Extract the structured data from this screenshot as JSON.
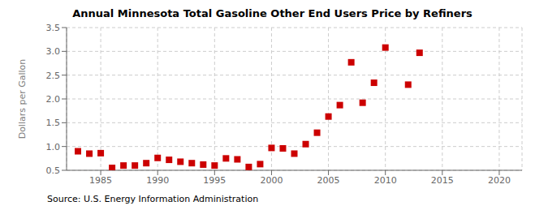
{
  "chart_data": {
    "type": "scatter",
    "title": "Annual Minnesota Total Gasoline Other End Users Price by Refiners",
    "ylabel": "Dollars per Gallon",
    "annotation": "Source: U.S. Energy Information Administration",
    "x": [
      1983,
      1984,
      1985,
      1986,
      1987,
      1988,
      1989,
      1990,
      1991,
      1992,
      1993,
      1994,
      1995,
      1996,
      1997,
      1998,
      1999,
      2000,
      2001,
      2002,
      2003,
      2004,
      2005,
      2006,
      2007,
      2008,
      2009,
      2010,
      2012,
      2013
    ],
    "values": [
      0.9,
      0.85,
      0.86,
      0.55,
      0.6,
      0.6,
      0.65,
      0.76,
      0.72,
      0.68,
      0.65,
      0.62,
      0.6,
      0.75,
      0.73,
      0.57,
      0.63,
      0.97,
      0.96,
      0.85,
      1.05,
      1.29,
      1.63,
      1.87,
      2.77,
      1.92,
      2.34,
      3.08,
      2.3,
      2.97
    ],
    "color": "#cc0000",
    "marker": "square",
    "xlim": [
      1982,
      2022
    ],
    "xticks": [
      1985,
      1990,
      1995,
      2000,
      2005,
      2010,
      2015,
      2020
    ],
    "ylim": [
      0.5,
      3.5
    ],
    "yticks": [
      0.5,
      {
        "value": 1.0,
        "label": "1.0"
      },
      1.5,
      {
        "value": 2.0,
        "label": "2.0"
      },
      2.5,
      {
        "value": 3.0,
        "label": "3.0"
      },
      3.5
    ],
    "grid": true
  }
}
